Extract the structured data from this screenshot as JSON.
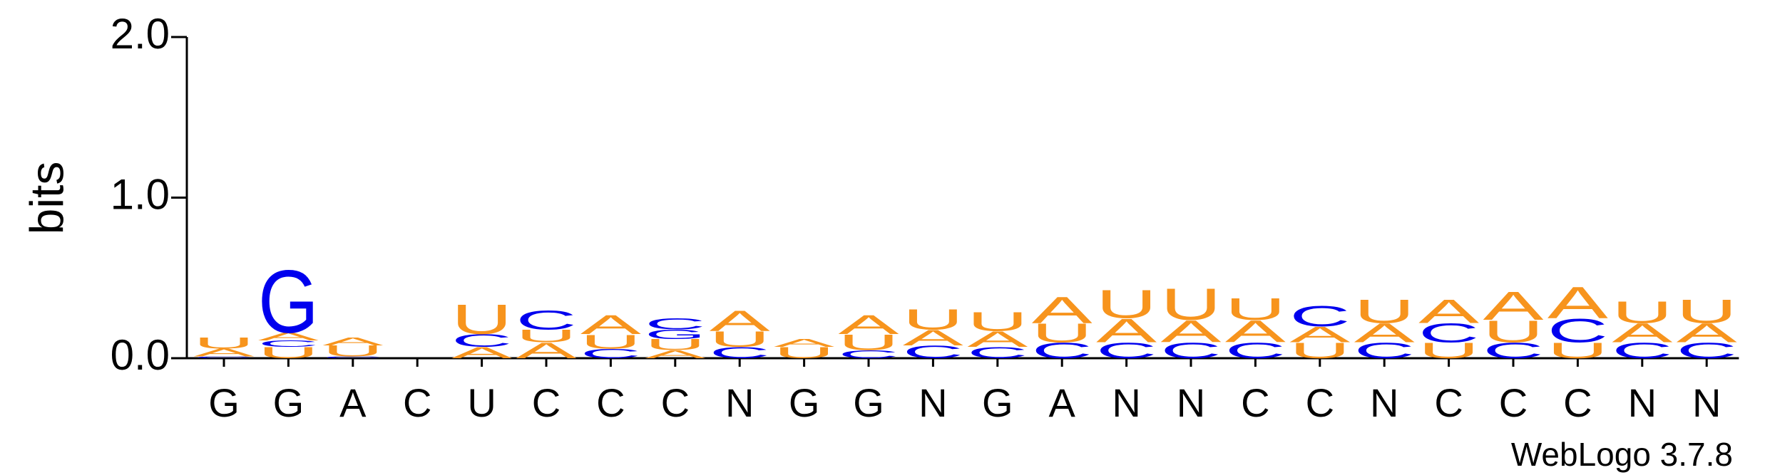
{
  "chart_data": {
    "type": "logo",
    "y_label": "bits",
    "ylim": [
      0,
      2
    ],
    "yticks": [
      {
        "value": 0,
        "label": "0.0"
      },
      {
        "value": 1,
        "label": "1.0"
      },
      {
        "value": 2,
        "label": "2.0"
      }
    ],
    "letter_colors": {
      "A": "#f7941d",
      "U": "#f7941d",
      "C": "#0000ee",
      "G": "#0000ee"
    },
    "categories": [
      "G",
      "G",
      "A",
      "C",
      "U",
      "C",
      "C",
      "C",
      "N",
      "G",
      "G",
      "N",
      "G",
      "A",
      "N",
      "N",
      "C",
      "C",
      "N",
      "C",
      "C",
      "C",
      "N",
      "N"
    ],
    "stacks": [
      [
        {
          "letter": "C",
          "height": 0.01
        },
        {
          "letter": "A",
          "height": 0.05
        },
        {
          "letter": "U",
          "height": 0.07
        }
      ],
      [
        {
          "letter": "U",
          "height": 0.07
        },
        {
          "letter": "C",
          "height": 0.04
        },
        {
          "letter": "A",
          "height": 0.05
        },
        {
          "letter": "G",
          "height": 0.4
        }
      ],
      [
        {
          "letter": "C",
          "height": 0.01
        },
        {
          "letter": "U",
          "height": 0.07
        },
        {
          "letter": "A",
          "height": 0.05
        }
      ],
      [],
      [
        {
          "letter": "A",
          "height": 0.07
        },
        {
          "letter": "C",
          "height": 0.08
        },
        {
          "letter": "U",
          "height": 0.19
        }
      ],
      [
        {
          "letter": "A",
          "height": 0.1
        },
        {
          "letter": "U",
          "height": 0.08
        },
        {
          "letter": "C",
          "height": 0.12
        }
      ],
      [
        {
          "letter": "C",
          "height": 0.06
        },
        {
          "letter": "U",
          "height": 0.09
        },
        {
          "letter": "A",
          "height": 0.12
        }
      ],
      [
        {
          "letter": "A",
          "height": 0.05
        },
        {
          "letter": "U",
          "height": 0.07
        },
        {
          "letter": "G",
          "height": 0.06
        },
        {
          "letter": "C",
          "height": 0.07
        }
      ],
      [
        {
          "letter": "C",
          "height": 0.07
        },
        {
          "letter": "U",
          "height": 0.1
        },
        {
          "letter": "A",
          "height": 0.13
        }
      ],
      [
        {
          "letter": "U",
          "height": 0.07
        },
        {
          "letter": "A",
          "height": 0.05
        }
      ],
      [
        {
          "letter": "C",
          "height": 0.05
        },
        {
          "letter": "U",
          "height": 0.1
        },
        {
          "letter": "A",
          "height": 0.12
        }
      ],
      [
        {
          "letter": "C",
          "height": 0.08
        },
        {
          "letter": "A",
          "height": 0.1
        },
        {
          "letter": "U",
          "height": 0.13
        }
      ],
      [
        {
          "letter": "C",
          "height": 0.07
        },
        {
          "letter": "A",
          "height": 0.1
        },
        {
          "letter": "U",
          "height": 0.12
        }
      ],
      [
        {
          "letter": "C",
          "height": 0.1
        },
        {
          "letter": "U",
          "height": 0.12
        },
        {
          "letter": "A",
          "height": 0.17
        }
      ],
      [
        {
          "letter": "C",
          "height": 0.1
        },
        {
          "letter": "A",
          "height": 0.15
        },
        {
          "letter": "U",
          "height": 0.18
        }
      ],
      [
        {
          "letter": "C",
          "height": 0.1
        },
        {
          "letter": "A",
          "height": 0.14
        },
        {
          "letter": "U",
          "height": 0.2
        }
      ],
      [
        {
          "letter": "C",
          "height": 0.1
        },
        {
          "letter": "A",
          "height": 0.14
        },
        {
          "letter": "U",
          "height": 0.14
        }
      ],
      [
        {
          "letter": "U",
          "height": 0.1
        },
        {
          "letter": "A",
          "height": 0.1
        },
        {
          "letter": "C",
          "height": 0.13
        }
      ],
      [
        {
          "letter": "C",
          "height": 0.1
        },
        {
          "letter": "A",
          "height": 0.12
        },
        {
          "letter": "U",
          "height": 0.15
        }
      ],
      [
        {
          "letter": "U",
          "height": 0.1
        },
        {
          "letter": "C",
          "height": 0.12
        },
        {
          "letter": "A",
          "height": 0.15
        }
      ],
      [
        {
          "letter": "C",
          "height": 0.1
        },
        {
          "letter": "U",
          "height": 0.14
        },
        {
          "letter": "A",
          "height": 0.18
        }
      ],
      [
        {
          "letter": "U",
          "height": 0.1
        },
        {
          "letter": "C",
          "height": 0.15
        },
        {
          "letter": "A",
          "height": 0.2
        }
      ],
      [
        {
          "letter": "C",
          "height": 0.1
        },
        {
          "letter": "A",
          "height": 0.12
        },
        {
          "letter": "U",
          "height": 0.14
        }
      ],
      [
        {
          "letter": "C",
          "height": 0.1
        },
        {
          "letter": "A",
          "height": 0.12
        },
        {
          "letter": "U",
          "height": 0.15
        }
      ]
    ],
    "credit": "WebLogo 3.7.8"
  }
}
